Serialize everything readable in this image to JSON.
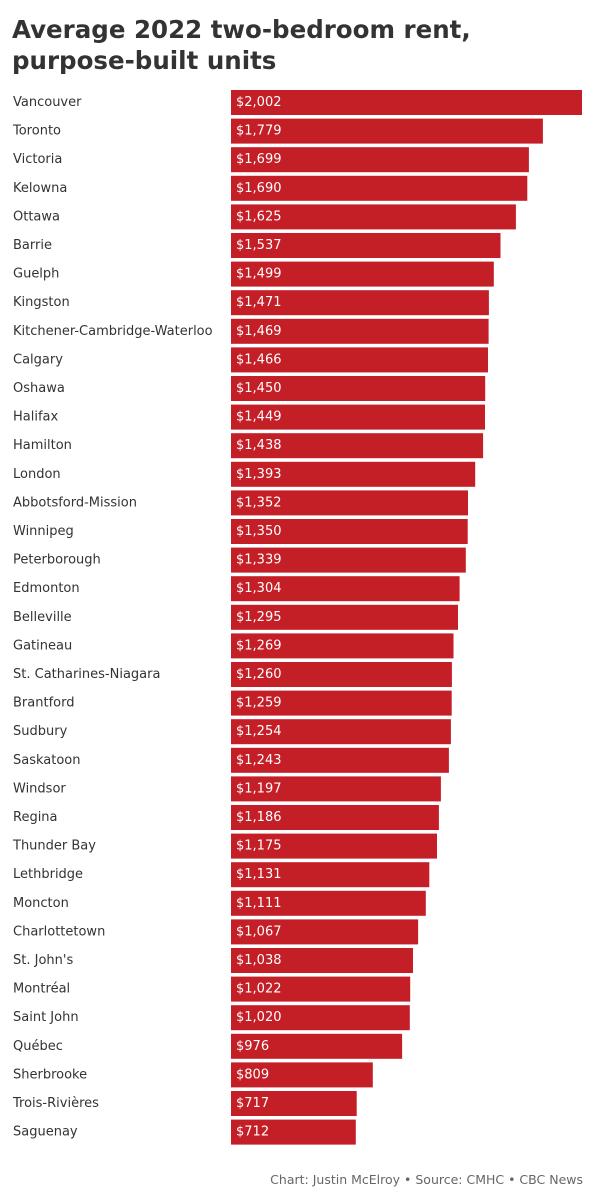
{
  "chart_data": {
    "type": "bar",
    "orientation": "horizontal",
    "title": "Average 2022 two-bedroom rent, purpose-built units",
    "bar_color": "#c41e27",
    "categories": [
      "Vancouver",
      "Toronto",
      "Victoria",
      "Kelowna",
      "Ottawa",
      "Barrie",
      "Guelph",
      "Kingston",
      "Kitchener-Cambridge-Waterloo",
      "Calgary",
      "Oshawa",
      "Halifax",
      "Hamilton",
      "London",
      "Abbotsford-Mission",
      "Winnipeg",
      "Peterborough",
      "Edmonton",
      "Belleville",
      "Gatineau",
      "St. Catharines-Niagara",
      "Brantford",
      "Sudbury",
      "Saskatoon",
      "Windsor",
      "Regina",
      "Thunder Bay",
      "Lethbridge",
      "Moncton",
      "Charlottetown",
      "St. John's",
      "Montréal",
      "Saint John",
      "Québec",
      "Sherbrooke",
      "Trois-Rivières",
      "Saguenay"
    ],
    "values": [
      2002,
      1779,
      1699,
      1690,
      1625,
      1537,
      1499,
      1471,
      1469,
      1466,
      1450,
      1449,
      1438,
      1393,
      1352,
      1350,
      1339,
      1304,
      1295,
      1269,
      1260,
      1259,
      1254,
      1243,
      1197,
      1186,
      1175,
      1131,
      1111,
      1067,
      1038,
      1022,
      1020,
      976,
      809,
      717,
      712
    ],
    "value_labels": [
      "$2,002",
      "$1,779",
      "$1,699",
      "$1,690",
      "$1,625",
      "$1,537",
      "$1,499",
      "$1,471",
      "$1,469",
      "$1,466",
      "$1,450",
      "$1,449",
      "$1,438",
      "$1,393",
      "$1,352",
      "$1,350",
      "$1,339",
      "$1,304",
      "$1,295",
      "$1,269",
      "$1,260",
      "$1,259",
      "$1,254",
      "$1,243",
      "$1,197",
      "$1,186",
      "$1,175",
      "$1,131",
      "$1,111",
      "$1,067",
      "$1,038",
      "$1,022",
      "$1,020",
      "$976",
      "$809",
      "$717",
      "$712"
    ],
    "xlim": [
      0,
      2002
    ]
  },
  "footer": "Chart: Justin McElroy • Source: CMHC • CBC News"
}
